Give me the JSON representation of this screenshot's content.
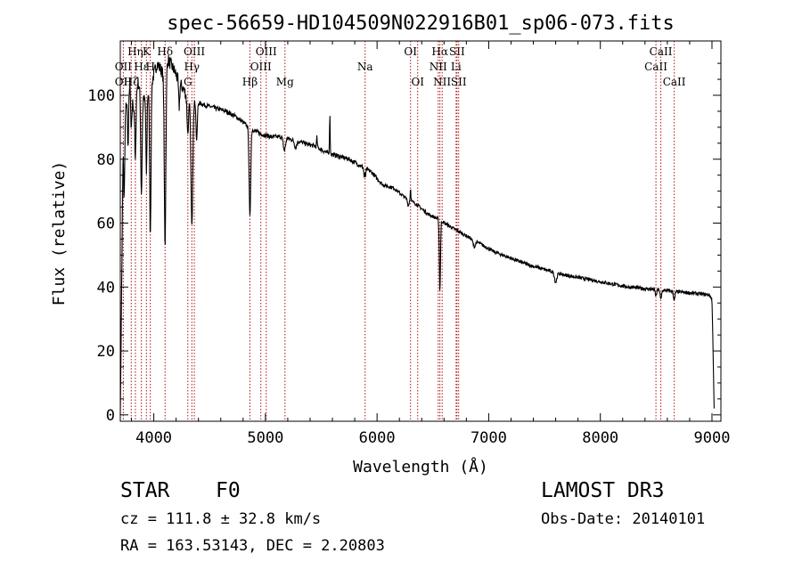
{
  "chart_data": {
    "type": "line",
    "title": "spec-56659-HD104509N022916B01_sp06-073.fits",
    "xlabel": "Wavelength (Å)",
    "ylabel": "Flux (relative)",
    "xlim": [
      3700,
      9080
    ],
    "ylim": [
      -2,
      117
    ],
    "xticks": [
      4000,
      5000,
      6000,
      7000,
      8000,
      9000
    ],
    "yticks": [
      0,
      20,
      40,
      60,
      80,
      100
    ],
    "line_color": "#000000",
    "marker_color": "#b01010",
    "continuum": [
      [
        3700,
        0
      ],
      [
        3712,
        40
      ],
      [
        3725,
        85
      ],
      [
        3745,
        95
      ],
      [
        3780,
        104
      ],
      [
        3820,
        96
      ],
      [
        3860,
        104
      ],
      [
        3900,
        98
      ],
      [
        3940,
        100
      ],
      [
        3980,
        104
      ],
      [
        4030,
        110
      ],
      [
        4080,
        107
      ],
      [
        4130,
        111
      ],
      [
        4180,
        108
      ],
      [
        4230,
        104
      ],
      [
        4280,
        101
      ],
      [
        4330,
        99
      ],
      [
        4380,
        98
      ],
      [
        4450,
        97
      ],
      [
        4550,
        96
      ],
      [
        4650,
        95
      ],
      [
        4750,
        93
      ],
      [
        4850,
        90
      ],
      [
        4950,
        88
      ],
      [
        5050,
        87
      ],
      [
        5150,
        87
      ],
      [
        5250,
        86
      ],
      [
        5350,
        85
      ],
      [
        5450,
        84
      ],
      [
        5550,
        82
      ],
      [
        5650,
        81
      ],
      [
        5750,
        80
      ],
      [
        5850,
        78
      ],
      [
        5950,
        76
      ],
      [
        6050,
        72
      ],
      [
        6150,
        71
      ],
      [
        6250,
        68
      ],
      [
        6350,
        66
      ],
      [
        6450,
        63
      ],
      [
        6560,
        61
      ],
      [
        6650,
        59
      ],
      [
        6750,
        57
      ],
      [
        6850,
        55
      ],
      [
        6950,
        53
      ],
      [
        7050,
        51
      ],
      [
        7200,
        49
      ],
      [
        7350,
        47
      ],
      [
        7500,
        45.5
      ],
      [
        7650,
        44
      ],
      [
        7800,
        43
      ],
      [
        7950,
        42
      ],
      [
        8100,
        41
      ],
      [
        8250,
        40
      ],
      [
        8400,
        39.5
      ],
      [
        8550,
        39
      ],
      [
        8700,
        38.5
      ],
      [
        8850,
        38
      ],
      [
        8980,
        37.5
      ],
      [
        9000,
        36
      ],
      [
        9010,
        20
      ],
      [
        9020,
        0
      ]
    ],
    "absorption_features": [
      [
        3735,
        22,
        5
      ],
      [
        3770,
        18,
        5
      ],
      [
        3798,
        12,
        5
      ],
      [
        3835,
        20,
        5
      ],
      [
        3889,
        30,
        6
      ],
      [
        3934,
        24,
        5
      ],
      [
        3969,
        46,
        6
      ],
      [
        4101,
        55,
        7
      ],
      [
        4227,
        8,
        5
      ],
      [
        4305,
        12,
        7
      ],
      [
        4341,
        40,
        8
      ],
      [
        4384,
        12,
        6
      ],
      [
        4861,
        28,
        7
      ],
      [
        5170,
        4,
        10
      ],
      [
        5270,
        2,
        10
      ],
      [
        5890,
        5,
        6
      ],
      [
        6280,
        2,
        6
      ],
      [
        6563,
        22,
        5
      ],
      [
        6870,
        2,
        10
      ],
      [
        7600,
        3,
        10
      ],
      [
        8498,
        2,
        6
      ],
      [
        8542,
        3,
        6
      ],
      [
        8662,
        3,
        6
      ]
    ],
    "emission_features": [
      [
        5577,
        12,
        3
      ],
      [
        5890,
        3,
        3
      ],
      [
        6300,
        4,
        3
      ],
      [
        5461,
        3,
        3
      ]
    ],
    "line_markers": [
      {
        "label": "Hη",
        "wavelength": 3835,
        "row": 1
      },
      {
        "label": "K",
        "wavelength": 3934,
        "row": 1
      },
      {
        "label": "Hδ",
        "wavelength": 4101,
        "row": 1
      },
      {
        "label": "OIII",
        "wavelength": 4363,
        "row": 1
      },
      {
        "label": "OIII",
        "wavelength": 5007,
        "row": 1
      },
      {
        "label": "OI",
        "wavelength": 6300,
        "row": 1
      },
      {
        "label": "Hα",
        "wavelength": 6563,
        "row": 1
      },
      {
        "label": "SII",
        "wavelength": 6716,
        "row": 1
      },
      {
        "label": "CaII",
        "wavelength": 8542,
        "row": 1
      },
      {
        "label": "OII",
        "wavelength": 3727,
        "row": 2
      },
      {
        "label": "H",
        "wavelength": 3969,
        "row": 2
      },
      {
        "label": "Hε",
        "wavelength": 3889,
        "row": 2
      },
      {
        "label": "Hγ",
        "wavelength": 4341,
        "row": 2
      },
      {
        "label": "OIII",
        "wavelength": 4959,
        "row": 2
      },
      {
        "label": "Na",
        "wavelength": 5893,
        "row": 2
      },
      {
        "label": "NII",
        "wavelength": 6548,
        "row": 2
      },
      {
        "label": "Li",
        "wavelength": 6708,
        "row": 2
      },
      {
        "label": "CaII",
        "wavelength": 8498,
        "row": 2
      },
      {
        "label": "OII",
        "wavelength": 3727,
        "row": 3
      },
      {
        "label": "Hζ",
        "wavelength": 3798,
        "row": 3
      },
      {
        "label": "G",
        "wavelength": 4305,
        "row": 3
      },
      {
        "label": "Hβ",
        "wavelength": 4861,
        "row": 3
      },
      {
        "label": "Mg",
        "wavelength": 5175,
        "row": 3
      },
      {
        "label": "OI",
        "wavelength": 6364,
        "row": 3
      },
      {
        "label": "NII",
        "wavelength": 6583,
        "row": 3
      },
      {
        "label": "SII",
        "wavelength": 6731,
        "row": 3
      },
      {
        "label": "CaII",
        "wavelength": 8662,
        "row": 3
      }
    ]
  },
  "info": {
    "object_class": "STAR",
    "subclass": "F0",
    "survey": "LAMOST DR3",
    "redshift": "cz = 111.8 ± 32.8 km/s",
    "obs_date": "Obs-Date: 20140101",
    "coordinates": "RA = 163.53143, DEC =   2.20803"
  }
}
